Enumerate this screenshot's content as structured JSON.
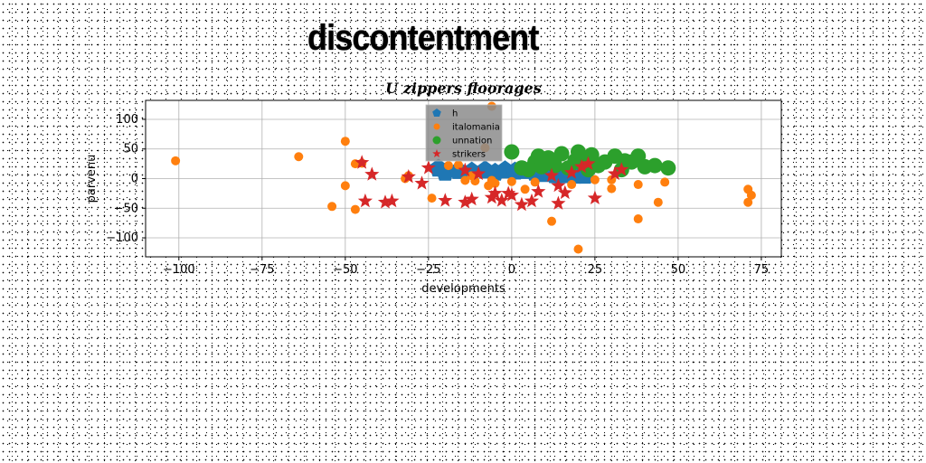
{
  "page_title": "discontentment",
  "chart_data": {
    "type": "scatter",
    "title": "U zippers floorages",
    "xlabel": "developments",
    "ylabel": "parvenu",
    "xlim": [
      -110,
      81
    ],
    "ylim": [
      -132,
      132
    ],
    "xticks": [
      -100,
      -75,
      -50,
      -25,
      0,
      25,
      50,
      75
    ],
    "xtick_labels": [
      "−100",
      "−75",
      "−50",
      "−25",
      "0",
      "25",
      "50",
      "75"
    ],
    "yticks": [
      -100,
      -50,
      0,
      50,
      100
    ],
    "ytick_labels": [
      "−100",
      "−50",
      "0",
      "50",
      "100"
    ],
    "grid": true,
    "legend_position": "top-center",
    "series": [
      {
        "name": "h",
        "color": "#1f77b4",
        "marker": "pentagon-band",
        "points": [
          [
            -22,
            17
          ],
          [
            -20,
            10
          ],
          [
            -16,
            13
          ],
          [
            -12,
            12
          ],
          [
            -8,
            14
          ],
          [
            -5,
            10
          ],
          [
            -2,
            14
          ],
          [
            1,
            12
          ],
          [
            4,
            13
          ],
          [
            7,
            10
          ],
          [
            10,
            8
          ],
          [
            13,
            6
          ],
          [
            16,
            6
          ],
          [
            19,
            5
          ],
          [
            22,
            5
          ]
        ]
      },
      {
        "name": "italomania",
        "color": "#ff7f0e",
        "marker": "circle",
        "points": [
          [
            -101,
            30
          ],
          [
            -64,
            37
          ],
          [
            -50,
            63
          ],
          [
            -47,
            25
          ],
          [
            -45,
            26
          ],
          [
            -50,
            -12
          ],
          [
            -54,
            -47
          ],
          [
            -47,
            -52
          ],
          [
            -32,
            0
          ],
          [
            -31,
            5
          ],
          [
            -24,
            -33
          ],
          [
            -19,
            22
          ],
          [
            -16,
            23
          ],
          [
            -14,
            -3
          ],
          [
            -12,
            5
          ],
          [
            -11,
            -4
          ],
          [
            -8,
            52
          ],
          [
            -7,
            -12
          ],
          [
            -6,
            -3
          ],
          [
            -5,
            -8
          ],
          [
            -6,
            122
          ],
          [
            0,
            -5
          ],
          [
            4,
            -18
          ],
          [
            7,
            -6
          ],
          [
            12,
            -72
          ],
          [
            18,
            -10
          ],
          [
            20,
            -119
          ],
          [
            25,
            -2
          ],
          [
            30,
            -2
          ],
          [
            30,
            -17
          ],
          [
            38,
            -68
          ],
          [
            38,
            -10
          ],
          [
            44,
            -40
          ],
          [
            46,
            -6
          ],
          [
            71,
            -18
          ],
          [
            71,
            -40
          ],
          [
            72,
            -28
          ]
        ]
      },
      {
        "name": "unnation",
        "color": "#2ca02c",
        "marker": "circle",
        "points": [
          [
            0,
            45
          ],
          [
            3,
            18
          ],
          [
            5,
            15
          ],
          [
            7,
            28
          ],
          [
            8,
            38
          ],
          [
            9,
            20
          ],
          [
            10,
            25
          ],
          [
            11,
            35
          ],
          [
            12,
            30
          ],
          [
            13,
            22
          ],
          [
            15,
            42
          ],
          [
            17,
            18
          ],
          [
            19,
            30
          ],
          [
            20,
            45
          ],
          [
            21,
            26
          ],
          [
            23,
            15
          ],
          [
            24,
            40
          ],
          [
            26,
            22
          ],
          [
            28,
            28
          ],
          [
            31,
            38
          ],
          [
            33,
            15
          ],
          [
            34,
            30
          ],
          [
            36,
            28
          ],
          [
            38,
            38
          ],
          [
            40,
            20
          ],
          [
            43,
            22
          ],
          [
            47,
            18
          ]
        ]
      },
      {
        "name": "strikers",
        "color": "#d62728",
        "marker": "star",
        "points": [
          [
            -45,
            27
          ],
          [
            -42,
            7
          ],
          [
            -44,
            -38
          ],
          [
            -38,
            -40
          ],
          [
            -36,
            -38
          ],
          [
            -31,
            3
          ],
          [
            -27,
            -8
          ],
          [
            -25,
            18
          ],
          [
            -20,
            -37
          ],
          [
            -14,
            14
          ],
          [
            -14,
            -40
          ],
          [
            -12,
            -35
          ],
          [
            -10,
            8
          ],
          [
            -6,
            -32
          ],
          [
            -5,
            -25
          ],
          [
            -3,
            -37
          ],
          [
            -1,
            -25
          ],
          [
            0,
            -28
          ],
          [
            3,
            -44
          ],
          [
            6,
            -38
          ],
          [
            8,
            -22
          ],
          [
            12,
            5
          ],
          [
            14,
            -42
          ],
          [
            14,
            -12
          ],
          [
            16,
            -24
          ],
          [
            18,
            10
          ],
          [
            21,
            20
          ],
          [
            23,
            25
          ],
          [
            25,
            -33
          ],
          [
            31,
            8
          ],
          [
            33,
            15
          ]
        ]
      }
    ]
  }
}
